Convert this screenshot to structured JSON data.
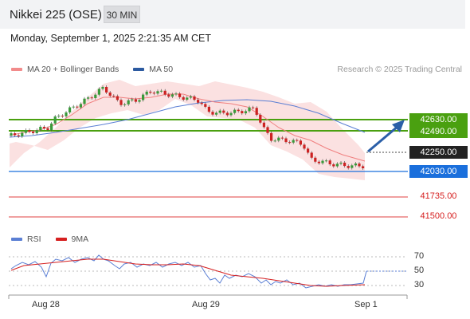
{
  "header": {
    "title": "Nikkei 225 (OSE)",
    "interval": "30 MIN"
  },
  "datetime": "Monday, September 1, 2025 2:21:35 AM CET",
  "legend": {
    "ma20": {
      "label": "MA 20 + Bollinger Bands",
      "color": "#f08080"
    },
    "ma50": {
      "label": "MA 50",
      "color": "#2c5aa0"
    }
  },
  "credit": "Research © 2025 Trading Central",
  "levels": {
    "r2": {
      "label": "42630.00",
      "color": "#4aa010"
    },
    "r1": {
      "label": "42490.00",
      "color": "#4aa010"
    },
    "last": {
      "label": "42250.00",
      "color": "#222222"
    },
    "s1": {
      "label": "42030.00",
      "color": "#1a6fdc"
    },
    "s2": {
      "label": "41735.00",
      "color": "#d62020"
    },
    "s3": {
      "label": "41500.00",
      "color": "#d62020"
    }
  },
  "rsi_legend": {
    "rsi": {
      "label": "RSI",
      "color": "#5b7fd4"
    },
    "ma": {
      "label": "9MA",
      "color": "#d62020"
    }
  },
  "rsi_levels": [
    "70",
    "50",
    "30"
  ],
  "x_labels": [
    "Aug 28",
    "Aug 29",
    "Sep 1"
  ]
}
